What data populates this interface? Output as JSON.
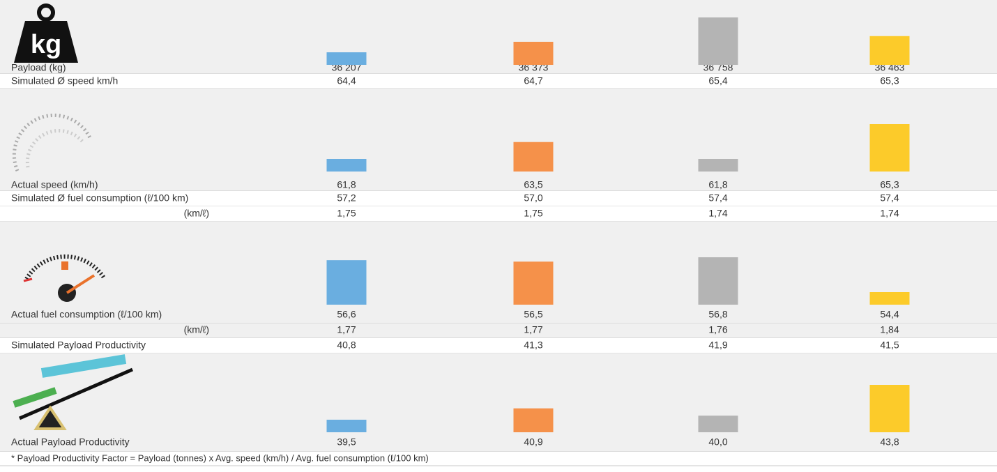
{
  "icon_text": "kg",
  "colors": [
    "#6aaee0",
    "#f5914a",
    "#b4b4b4",
    "#fccb2a"
  ],
  "rows": [
    {
      "label": "Payload (kg)",
      "values": [
        36207,
        36373,
        36758,
        36463
      ],
      "value_labels": [
        "36 207",
        "36 373",
        "36 758",
        "36 463"
      ]
    },
    {
      "label": "Simulated Ø speed km/h",
      "values": [
        64.4,
        64.7,
        65.4,
        65.3
      ],
      "value_labels": [
        "64,4",
        "64,7",
        "65,4",
        "65,3"
      ]
    },
    {
      "label": "Actual speed (km/h)",
      "values": [
        61.8,
        63.5,
        61.8,
        65.3
      ],
      "value_labels": [
        "61,8",
        "63,5",
        "61,8",
        "65,3"
      ]
    },
    {
      "label": "Simulated Ø fuel consumption (ℓ/100 km)",
      "values": [
        57.2,
        57.0,
        57.4,
        57.4
      ],
      "value_labels": [
        "57,2",
        "57,0",
        "57,4",
        "57,4"
      ]
    },
    {
      "label": "(km/ℓ)",
      "values": [
        1.75,
        1.75,
        1.74,
        1.74
      ],
      "value_labels": [
        "1,75",
        "1,75",
        "1,74",
        "1,74"
      ]
    },
    {
      "label": "Actual fuel consumption (ℓ/100 km)",
      "values": [
        56.6,
        56.5,
        56.8,
        54.4
      ],
      "value_labels": [
        "56,6",
        "56,5",
        "56,8",
        "54,4"
      ]
    },
    {
      "label": "(km/ℓ)",
      "values": [
        1.77,
        1.77,
        1.76,
        1.84
      ],
      "value_labels": [
        "1,77",
        "1,77",
        "1,76",
        "1,84"
      ]
    },
    {
      "label": "Simulated Payload Productivity",
      "values": [
        40.8,
        41.3,
        41.9,
        41.5
      ],
      "value_labels": [
        "40,8",
        "41,3",
        "41,9",
        "41,5"
      ]
    },
    {
      "label": "Actual Payload Productivity",
      "values": [
        39.5,
        40.9,
        40.0,
        43.8
      ],
      "value_labels": [
        "39,5",
        "40,9",
        "40,0",
        "43,8"
      ]
    }
  ],
  "footnote": "* Payload Productivity Factor = Payload (tonnes) x Avg. speed (km/h) / Avg. fuel consumption (ℓ/100 km)"
}
